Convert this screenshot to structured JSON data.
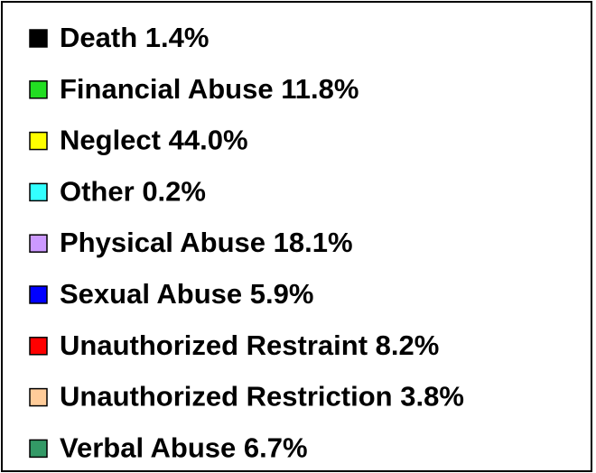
{
  "chart_data": {
    "type": "pie",
    "categories": [
      "Death",
      "Financial Abuse",
      "Neglect",
      "Other",
      "Physical Abuse",
      "Sexual Abuse",
      "Unauthorized Restraint",
      "Unauthorized Restriction",
      "Verbal Abuse"
    ],
    "values": [
      1.4,
      11.8,
      44.0,
      0.2,
      18.1,
      5.9,
      8.2,
      3.8,
      6.7
    ],
    "value_labels": [
      "1.4%",
      "11.8%",
      "44.0%",
      "0.2%",
      "18.1%",
      "5.9%",
      "8.2%",
      "3.8%",
      "6.7%"
    ],
    "colors": [
      "#000000",
      "#22dd22",
      "#ffff00",
      "#33ffff",
      "#cc99ff",
      "#0000ff",
      "#ff0000",
      "#ffcc99",
      "#339966"
    ]
  }
}
